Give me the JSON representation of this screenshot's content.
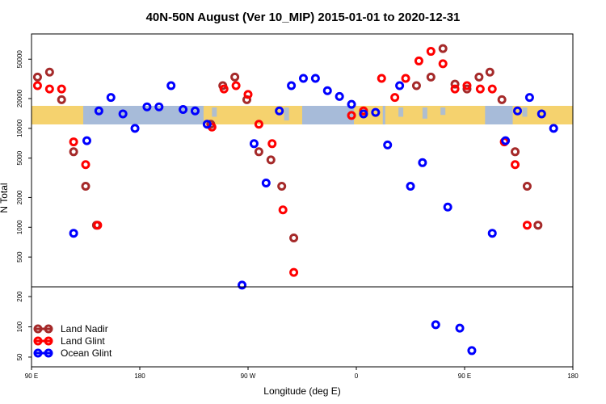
{
  "chart_data": {
    "type": "scatter",
    "title": "40N-50N August (Ver 10_MIP)   2015-01-01 to 2020-12-31",
    "xlabel": "Longitude (deg E)",
    "ylabel": "N Total",
    "x_ticks": [
      {
        "value": 90,
        "label": "90 E"
      },
      {
        "value": 180,
        "label": "180"
      },
      {
        "value": 270,
        "label": "90 W"
      },
      {
        "value": 360,
        "label": "0"
      },
      {
        "value": 450,
        "label": "90 E"
      },
      {
        "value": 540,
        "label": "180"
      }
    ],
    "xlim": [
      90,
      540
    ],
    "y_scale": "log",
    "y_ticks_upper": [
      500,
      1000,
      2000,
      5000,
      10000,
      20000,
      50000
    ],
    "y_ticks_lower": [
      50,
      100,
      200
    ],
    "ylim_upper": [
      250,
      90000
    ],
    "ylim_lower": [
      40,
      250
    ],
    "background_map": "world map strip, latitude band 40N-50N (land yellow, ocean blue)",
    "legend_position": "bottom-left",
    "colors": {
      "land_nadir": "#a52a2a",
      "land_glint": "#ff0000",
      "ocean_glint": "#0000ff",
      "land": "#f5d26e",
      "ocean": "#a7bbd9"
    },
    "series": [
      {
        "name": "Land Nadir",
        "color": "#a52a2a",
        "points": [
          [
            95,
            33000
          ],
          [
            105,
            37000
          ],
          [
            115,
            19500
          ],
          [
            125,
            5800
          ],
          [
            135,
            2600
          ],
          [
            144,
            1050
          ],
          [
            239,
            11000
          ],
          [
            249,
            27000
          ],
          [
            259,
            33000
          ],
          [
            269,
            19500
          ],
          [
            279,
            5800
          ],
          [
            289,
            4800
          ],
          [
            298,
            2600
          ],
          [
            308,
            780
          ],
          [
            410,
            27000
          ],
          [
            422,
            33000
          ],
          [
            432,
            64000
          ],
          [
            442,
            28000
          ],
          [
            452,
            25000
          ],
          [
            462,
            33000
          ],
          [
            471,
            37000
          ],
          [
            481,
            19500
          ],
          [
            492,
            5800
          ],
          [
            502,
            2600
          ],
          [
            511,
            1050
          ]
        ]
      },
      {
        "name": "Land Glint",
        "color": "#ff0000",
        "points": [
          [
            95,
            27000
          ],
          [
            105,
            25000
          ],
          [
            115,
            25000
          ],
          [
            125,
            7300
          ],
          [
            135,
            4300
          ],
          [
            145,
            1050
          ],
          [
            240,
            10300
          ],
          [
            250,
            25000
          ],
          [
            260,
            27000
          ],
          [
            270,
            22000
          ],
          [
            279,
            11000
          ],
          [
            290,
            7000
          ],
          [
            299,
            1500
          ],
          [
            308,
            350
          ],
          [
            356,
            13500
          ],
          [
            366,
            15000
          ],
          [
            381,
            32000
          ],
          [
            392,
            20500
          ],
          [
            401,
            32000
          ],
          [
            412,
            48000
          ],
          [
            422,
            60000
          ],
          [
            432,
            45000
          ],
          [
            442,
            25000
          ],
          [
            452,
            27000
          ],
          [
            463,
            25000
          ],
          [
            473,
            25000
          ],
          [
            483,
            7300
          ],
          [
            492,
            4300
          ],
          [
            502,
            1050
          ]
        ]
      },
      {
        "name": "Ocean Glint",
        "color": "#0000ff",
        "points": [
          [
            125,
            870
          ],
          [
            136,
            7500
          ],
          [
            146,
            15000
          ],
          [
            156,
            20500
          ],
          [
            166,
            14000
          ],
          [
            176,
            10000
          ],
          [
            186,
            16500
          ],
          [
            196,
            16500
          ],
          [
            206,
            27000
          ],
          [
            216,
            15500
          ],
          [
            226,
            15000
          ],
          [
            236,
            11000
          ],
          [
            265,
            260
          ],
          [
            275,
            7000
          ],
          [
            285,
            2800
          ],
          [
            296,
            15000
          ],
          [
            306,
            27000
          ],
          [
            316,
            32000
          ],
          [
            326,
            32000
          ],
          [
            336,
            24000
          ],
          [
            346,
            21000
          ],
          [
            356,
            17500
          ],
          [
            366,
            14000
          ],
          [
            376,
            14500
          ],
          [
            386,
            6800
          ],
          [
            396,
            27000
          ],
          [
            405,
            2600
          ],
          [
            415,
            4500
          ],
          [
            426,
            105
          ],
          [
            436,
            1600
          ],
          [
            446,
            97
          ],
          [
            456,
            58
          ],
          [
            473,
            870
          ],
          [
            484,
            7500
          ],
          [
            494,
            15000
          ],
          [
            504,
            20500
          ],
          [
            514,
            14000
          ],
          [
            524,
            10000
          ]
        ]
      }
    ]
  }
}
